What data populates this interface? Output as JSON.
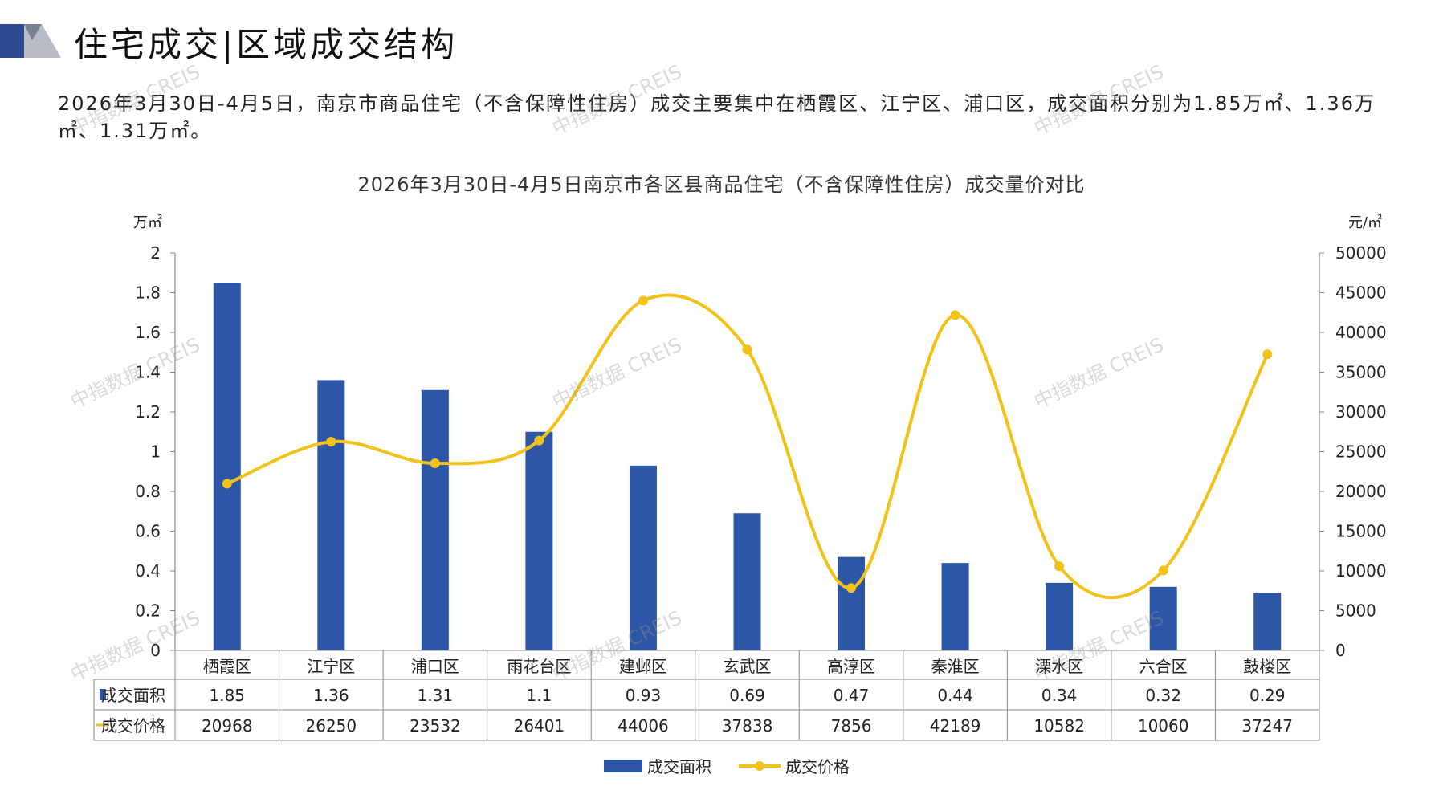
{
  "header": {
    "title": "住宅成交|区域成交结构"
  },
  "summary": "2026年3月30日-4月5日，南京市商品住宅（不含保障性住房）成交主要集中在栖霞区、江宁区、浦口区，成交面积分别为1.85万㎡、1.36万㎡、1.31万㎡。",
  "watermark": "中指数据 CREIS",
  "colors": {
    "bar": "#2E56A6",
    "line": "#F2C21A",
    "accent": "#2E4A8E"
  },
  "chart_data": {
    "type": "bar",
    "title": "2026年3月30日-4月5日南京市各区县商品住宅（不含保障性住房）成交量价对比",
    "ylabel_left": "万㎡",
    "ylabel_right": "元/㎡",
    "ylim_left": [
      0,
      2
    ],
    "ylim_right": [
      0,
      50000
    ],
    "yticks_left": [
      "0",
      "0.2",
      "0.4",
      "0.6",
      "0.8",
      "1",
      "1.2",
      "1.4",
      "1.6",
      "1.8",
      "2"
    ],
    "yticks_right": [
      "0",
      "5000",
      "10000",
      "15000",
      "20000",
      "25000",
      "30000",
      "35000",
      "40000",
      "45000",
      "50000"
    ],
    "categories": [
      "栖霞区",
      "江宁区",
      "浦口区",
      "雨花台区",
      "建邺区",
      "玄武区",
      "高淳区",
      "秦淮区",
      "溧水区",
      "六合区",
      "鼓楼区"
    ],
    "series": [
      {
        "name": "成交面积",
        "type": "bar",
        "axis": "left",
        "values": [
          1.85,
          1.36,
          1.31,
          1.1,
          0.93,
          0.69,
          0.47,
          0.44,
          0.34,
          0.32,
          0.29
        ],
        "labels": [
          "1.85",
          "1.36",
          "1.31",
          "1.1",
          "0.93",
          "0.69",
          "0.47",
          "0.44",
          "0.34",
          "0.32",
          "0.29"
        ]
      },
      {
        "name": "成交价格",
        "type": "line",
        "axis": "right",
        "values": [
          20968,
          26250,
          23532,
          26401,
          44006,
          37838,
          7856,
          42189,
          10582,
          10060,
          37247
        ],
        "labels": [
          "20968",
          "26250",
          "23532",
          "26401",
          "44006",
          "37838",
          "7856",
          "42189",
          "10582",
          "10060",
          "37247"
        ]
      }
    ],
    "legend_position": "bottom",
    "grid": false
  }
}
